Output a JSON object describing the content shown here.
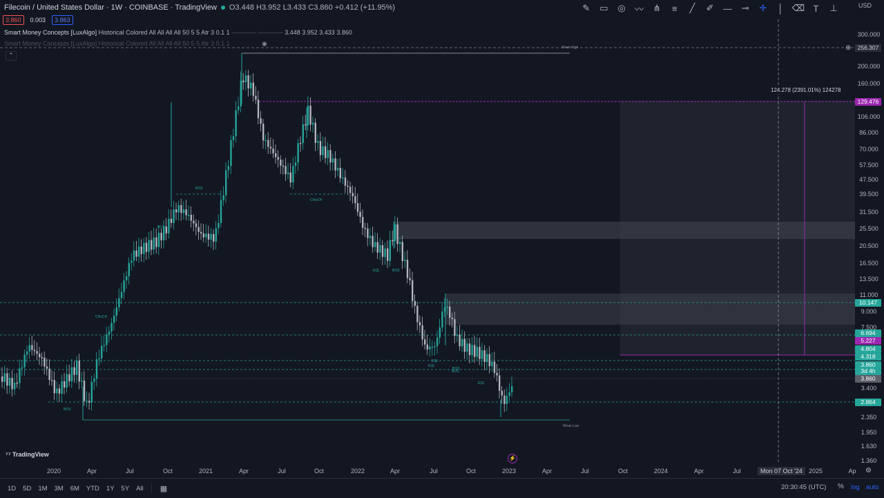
{
  "header": {
    "title": "Filecoin / United States Dollar · 1W · COINBASE · TradingView",
    "ohlc": "O3.448 H3.952 L3.433 C3.860 +0.412 (+11.95%)"
  },
  "bidask": {
    "bid": "3.860",
    "spread": "0.003",
    "ask": "3.863"
  },
  "indicator": {
    "name": "Smart Money Concepts [LuxAlgo]",
    "params": "Historical Colored All All All All 50 5 5 Atr 3 0.1 1",
    "values": "3.448  3.952  3.433  3.860",
    "ghost_name": "Smart Money Concepts [LuxAlgo]",
    "ghost_params": "Historical Colored All All All All 50 5 5 Atr 3 0.1 1"
  },
  "price_axis": {
    "currency": "USD",
    "ticks": [
      "300.000",
      "200.000",
      "160.000",
      "106.000",
      "86.000",
      "70.000",
      "57.500",
      "47.500",
      "39.500",
      "31.500",
      "25.500",
      "20.500",
      "16.500",
      "13.500",
      "11.000",
      "9.000",
      "7.500",
      "3.400",
      "2.350",
      "1.950",
      "1.630",
      "1.360"
    ],
    "labels": [
      {
        "text": "256.307",
        "bg": "#2a2e39",
        "fg": "#d1d4dc"
      },
      {
        "text": "129.476",
        "bg": "#9c27b0",
        "fg": "#ffffff"
      },
      {
        "text": "10.147",
        "bg": "#26a69a",
        "fg": "#ffffff"
      },
      {
        "text": "6.694",
        "bg": "#26a69a",
        "fg": "#ffffff"
      },
      {
        "text": "5.227",
        "bg": "#9c27b0",
        "fg": "#ffffff"
      },
      {
        "text": "4.804",
        "bg": "#26a69a",
        "fg": "#ffffff"
      },
      {
        "text": "4.318",
        "bg": "#26a69a",
        "fg": "#ffffff"
      },
      {
        "text": "3.860",
        "bg": "#26a69a",
        "fg": "#ffffff"
      },
      {
        "text": "3d 4h",
        "bg": "#26a69a",
        "fg": "#ffffff"
      },
      {
        "text": "3.860",
        "bg": "#5d606b",
        "fg": "#ffffff"
      },
      {
        "text": "2.864",
        "bg": "#26a69a",
        "fg": "#ffffff"
      }
    ]
  },
  "time_axis": {
    "ticks": [
      "2020",
      "Apr",
      "Jul",
      "Oct",
      "2021",
      "Apr",
      "Jul",
      "Oct",
      "2022",
      "Apr",
      "Jul",
      "Oct",
      "2023",
      "Apr",
      "Jul",
      "Oct",
      "2024",
      "Apr",
      "Jul",
      "2025",
      "Ap"
    ],
    "crosshair": "Mon 07 Oct '24"
  },
  "measure": "124.278 (2391.01%) 124278",
  "smc_labels": [
    "BOS",
    "BOS",
    "CHoCH",
    "CHoCH",
    "BOS",
    "EQL",
    "BOS",
    "EQL",
    "BOS",
    "EQL",
    "BOS",
    "EQL"
  ],
  "smc_zone_labels": [
    "Weak High",
    "Weak Low"
  ],
  "branding": "TradingView",
  "bottom": {
    "ranges": [
      "1D",
      "5D",
      "1M",
      "3M",
      "6M",
      "YTD",
      "1Y",
      "5Y",
      "All"
    ],
    "clock": "20:30:45 (UTC)",
    "percent": "%",
    "log": "log",
    "auto": "auto"
  },
  "toolbar_icons": [
    "brush-icon",
    "rectangle-icon",
    "circle-icon",
    "polyline-icon",
    "pitchfork-icon",
    "fib-icon",
    "trendline-icon",
    "pen-icon",
    "horizontal-line-icon",
    "horizontal-ray-icon",
    "crosshair-icon",
    "vertical-line-icon",
    "eraser-icon",
    "text-icon",
    "measure-icon"
  ],
  "colors": {
    "bull": "#26a69a",
    "bear": "#b2b5be",
    "accent": "#9c27b0",
    "bg": "#131722"
  }
}
